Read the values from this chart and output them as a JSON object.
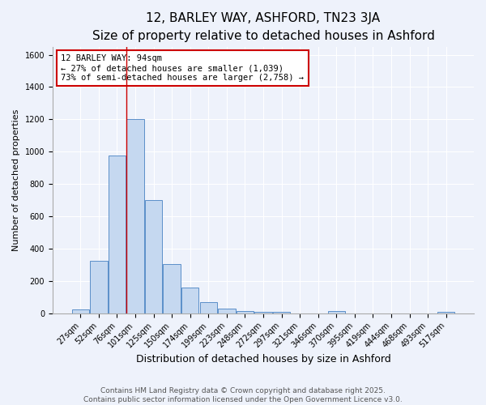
{
  "title": "12, BARLEY WAY, ASHFORD, TN23 3JA",
  "subtitle": "Size of property relative to detached houses in Ashford",
  "xlabel": "Distribution of detached houses by size in Ashford",
  "ylabel": "Number of detached properties",
  "categories": [
    "27sqm",
    "52sqm",
    "76sqm",
    "101sqm",
    "125sqm",
    "150sqm",
    "174sqm",
    "199sqm",
    "223sqm",
    "248sqm",
    "272sqm",
    "297sqm",
    "321sqm",
    "346sqm",
    "370sqm",
    "395sqm",
    "419sqm",
    "444sqm",
    "468sqm",
    "493sqm",
    "517sqm"
  ],
  "values": [
    25,
    325,
    975,
    1200,
    700,
    305,
    160,
    70,
    30,
    15,
    10,
    8,
    0,
    0,
    12,
    0,
    0,
    0,
    0,
    0,
    10
  ],
  "bar_color": "#c5d8f0",
  "bar_edge_color": "#5b8fc9",
  "annotation_text": "12 BARLEY WAY: 94sqm\n← 27% of detached houses are smaller (1,039)\n73% of semi-detached houses are larger (2,758) →",
  "annotation_box_color": "#ffffff",
  "annotation_box_edge": "#cc0000",
  "vline_x": 2.5,
  "vline_color": "#cc0000",
  "ylim": [
    0,
    1650
  ],
  "yticks": [
    0,
    200,
    400,
    600,
    800,
    1000,
    1200,
    1400,
    1600
  ],
  "bg_color": "#eef2fb",
  "grid_color": "#ffffff",
  "footer": "Contains HM Land Registry data © Crown copyright and database right 2025.\nContains public sector information licensed under the Open Government Licence v3.0.",
  "title_fontsize": 11,
  "subtitle_fontsize": 9.5,
  "xlabel_fontsize": 9,
  "ylabel_fontsize": 8,
  "tick_fontsize": 7,
  "footer_fontsize": 6.5,
  "ann_fontsize": 7.5
}
